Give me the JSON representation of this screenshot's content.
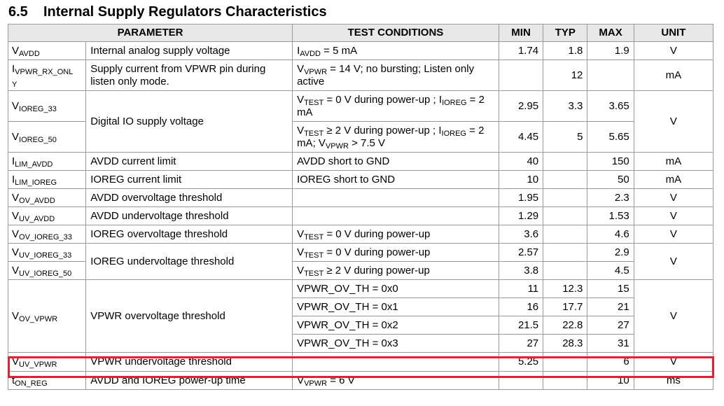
{
  "section": {
    "number": "6.5",
    "title": "Internal Supply Regulators Characteristics"
  },
  "headers": {
    "parameter": "PARAMETER",
    "test": "TEST CONDITIONS",
    "min": "MIN",
    "typ": "TYP",
    "max": "MAX",
    "unit": "UNIT"
  },
  "rows": {
    "vavdd": {
      "sym": "V",
      "sub": "AVDD",
      "desc": "Internal analog supply voltage",
      "t1": "I",
      "t1sub": "AVDD",
      "t2": " = 5 mA",
      "min": "1.74",
      "typ": "1.8",
      "max": "1.9",
      "unit": "V"
    },
    "ivpwr": {
      "sym": "I",
      "sub": "VPWR_RX_ONL",
      "sub2": "Y",
      "desc": "Supply current from VPWR pin during listen only mode.",
      "t1": "V",
      "t1sub": "VPWR",
      "t2": " = 14 V; no bursting; Listen only active",
      "typ": "12",
      "unit": "mA"
    },
    "vioreg33": {
      "sym": "V",
      "sub": "IOREG_33",
      "desc": "Digital IO supply voltage",
      "t1": "V",
      "t1sub": "TEST",
      "t2": " = 0 V during power-up ; I",
      "t3sub": "IOREG",
      "t4": " = 2 mA",
      "min": "2.95",
      "typ": "3.3",
      "max": "3.65",
      "unit": "V"
    },
    "vioreg50": {
      "sym": "V",
      "sub": "IOREG_50",
      "t1": "V",
      "t1sub": "TEST",
      "t2": " ≥ 2 V during power-up ; I",
      "t3sub": "IOREG",
      "t4": " = 2 mA; V",
      "t5sub": "VPWR",
      "t6": " > 7.5 V",
      "min": "4.45",
      "typ": "5",
      "max": "5.65"
    },
    "ilimavdd": {
      "sym": "I",
      "sub": "LIM_AVDD",
      "desc": "AVDD current limit",
      "test": "AVDD short to GND",
      "min": "40",
      "max": "150",
      "unit": "mA"
    },
    "ilimioreg": {
      "sym": "I",
      "sub": "LIM_IOREG",
      "desc": "IOREG current limit",
      "test": "IOREG short to GND",
      "min": "10",
      "max": "50",
      "unit": "mA"
    },
    "vovavdd": {
      "sym": "V",
      "sub": "OV_AVDD",
      "desc": "AVDD overvoltage threshold",
      "min": "1.95",
      "max": "2.3",
      "unit": "V"
    },
    "vuvavdd": {
      "sym": "V",
      "sub": "UV_AVDD",
      "desc": "AVDD undervoltage threshold",
      "min": "1.29",
      "max": "1.53",
      "unit": "V"
    },
    "vovioreg33": {
      "sym": "V",
      "sub": "OV_IOREG_33",
      "desc": "IOREG overvoltage threshold",
      "t1": "V",
      "t1sub": "TEST",
      "t2": " = 0 V during power-up",
      "min": "3.6",
      "max": "4.6",
      "unit": "V"
    },
    "vuvioreg33": {
      "sym": "V",
      "sub": "UV_IOREG_33",
      "desc": "IOREG undervoltage threshold",
      "t1": "V",
      "t1sub": "TEST",
      "t2": " = 0 V during power-up",
      "min": "2.57",
      "max": "2.9",
      "unit": "V"
    },
    "vuvioreg50": {
      "sym": "V",
      "sub": "UV_IOREG_50",
      "t1": "V",
      "t1sub": "TEST",
      "t2": " ≥ 2 V during power-up",
      "min": "3.8",
      "max": "4.5"
    },
    "vovvpwr": {
      "sym": "V",
      "sub": "OV_VPWR",
      "desc": "VPWR overvoltage threshold",
      "unit": "V",
      "c0": {
        "test": "VPWR_OV_TH = 0x0",
        "min": "11",
        "typ": "12.3",
        "max": "15"
      },
      "c1": {
        "test": "VPWR_OV_TH = 0x1",
        "min": "16",
        "typ": "17.7",
        "max": "21"
      },
      "c2": {
        "test": "VPWR_OV_TH = 0x2",
        "min": "21.5",
        "typ": "22.8",
        "max": "27"
      },
      "c3": {
        "test": "VPWR_OV_TH = 0x3",
        "min": "27",
        "typ": "28.3",
        "max": "31"
      }
    },
    "vuvvpwr": {
      "sym": "V",
      "sub": "UV_VPWR",
      "desc": "VPWR undervoltage threshold",
      "min": "5.25",
      "max": "6",
      "unit": "V"
    },
    "tonreg": {
      "sym": "t",
      "sub": "ON_REG",
      "desc": "AVDD and IOREG power-up time",
      "t1": "V",
      "t1sub": "VPWR",
      "t2": " = 6 V",
      "max": "10",
      "unit": "ms"
    }
  },
  "highlight_color": "#e2202f"
}
